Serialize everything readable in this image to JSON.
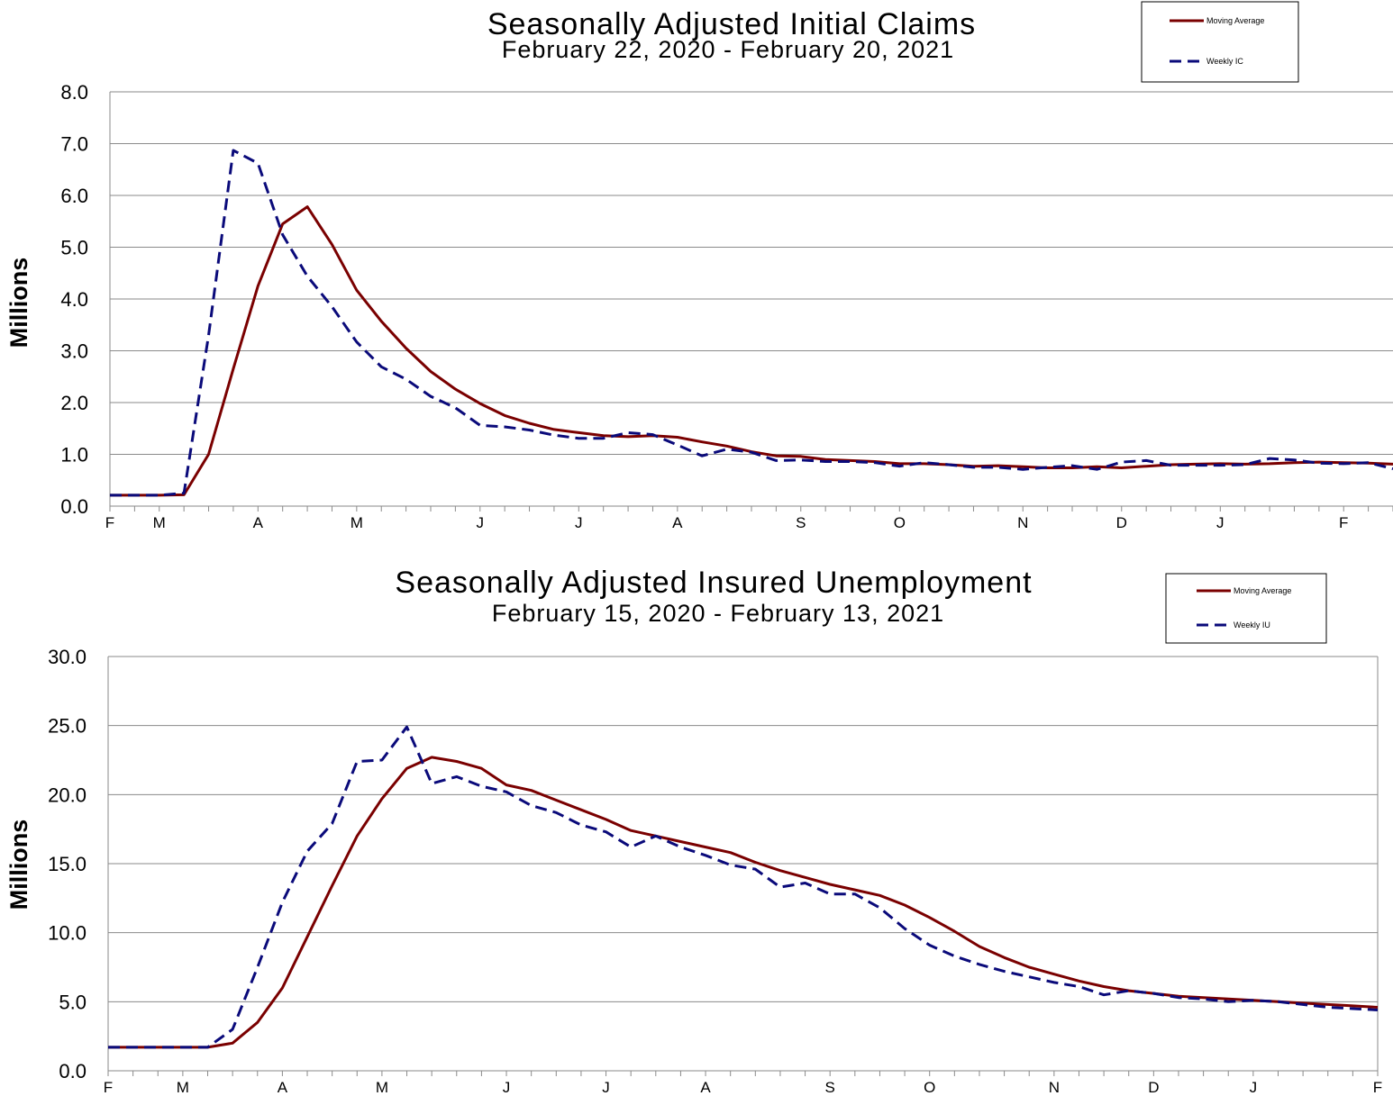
{
  "chart_data": [
    {
      "type": "line",
      "title": "Seasonally Adjusted Initial Claims",
      "subtitle": "February 22, 2020 - February 20, 2021",
      "ylabel": "Millions",
      "ylim": [
        0,
        8
      ],
      "yticks": [
        "0.0",
        "1.0",
        "2.0",
        "3.0",
        "4.0",
        "5.0",
        "6.0",
        "7.0",
        "8.0"
      ],
      "x_labels": [
        {
          "label": "F",
          "week": 0
        },
        {
          "label": "M",
          "week": 2
        },
        {
          "label": "A",
          "week": 6
        },
        {
          "label": "M",
          "week": 10
        },
        {
          "label": "J",
          "week": 15
        },
        {
          "label": "J",
          "week": 19
        },
        {
          "label": "A",
          "week": 23
        },
        {
          "label": "S",
          "week": 28
        },
        {
          "label": "O",
          "week": 32
        },
        {
          "label": "N",
          "week": 37
        },
        {
          "label": "D",
          "week": 41
        },
        {
          "label": "J",
          "week": 45
        },
        {
          "label": "F",
          "week": 50
        }
      ],
      "grid": true,
      "legend_position": "top-right",
      "series": [
        {
          "name": "Moving Average",
          "color": "#7a0000",
          "style": "solid",
          "values": [
            0.21,
            0.21,
            0.21,
            0.22,
            1.0,
            2.65,
            4.25,
            5.45,
            5.78,
            5.05,
            4.17,
            3.57,
            3.05,
            2.6,
            2.26,
            1.98,
            1.75,
            1.6,
            1.48,
            1.42,
            1.36,
            1.34,
            1.36,
            1.33,
            1.24,
            1.16,
            1.05,
            0.97,
            0.96,
            0.9,
            0.88,
            0.86,
            0.82,
            0.82,
            0.8,
            0.77,
            0.78,
            0.76,
            0.74,
            0.74,
            0.76,
            0.74,
            0.77,
            0.8,
            0.81,
            0.82,
            0.81,
            0.82,
            0.84,
            0.85,
            0.84,
            0.83,
            0.81
          ]
        },
        {
          "name": "Weekly IC",
          "color": "#0a0a7a",
          "style": "dashed",
          "values": [
            0.21,
            0.21,
            0.21,
            0.25,
            3.3,
            6.87,
            6.62,
            5.24,
            4.44,
            3.85,
            3.17,
            2.69,
            2.45,
            2.12,
            1.9,
            1.56,
            1.53,
            1.47,
            1.37,
            1.31,
            1.31,
            1.42,
            1.38,
            1.18,
            0.97,
            1.1,
            1.04,
            0.88,
            0.89,
            0.86,
            0.86,
            0.84,
            0.77,
            0.84,
            0.8,
            0.75,
            0.75,
            0.71,
            0.75,
            0.78,
            0.71,
            0.85,
            0.88,
            0.79,
            0.79,
            0.79,
            0.8,
            0.92,
            0.89,
            0.83,
            0.82,
            0.84,
            0.72
          ]
        }
      ]
    },
    {
      "type": "line",
      "title": "Seasonally Adjusted Insured Unemployment",
      "subtitle": "February 15, 2020 - February 13, 2021",
      "ylabel": "Millions",
      "ylim": [
        0,
        30
      ],
      "yticks": [
        "0.0",
        "5.0",
        "10.0",
        "15.0",
        "20.0",
        "25.0",
        "30.0"
      ],
      "x_labels": [
        {
          "label": "F",
          "week": 0
        },
        {
          "label": "M",
          "week": 3
        },
        {
          "label": "A",
          "week": 7
        },
        {
          "label": "M",
          "week": 11
        },
        {
          "label": "J",
          "week": 16
        },
        {
          "label": "J",
          "week": 20
        },
        {
          "label": "A",
          "week": 24
        },
        {
          "label": "S",
          "week": 29
        },
        {
          "label": "O",
          "week": 33
        },
        {
          "label": "N",
          "week": 38
        },
        {
          "label": "D",
          "week": 42
        },
        {
          "label": "J",
          "week": 46
        },
        {
          "label": "F",
          "week": 51
        }
      ],
      "grid": true,
      "legend_position": "top-right",
      "series": [
        {
          "name": "Moving Average",
          "color": "#7a0000",
          "style": "solid",
          "values": [
            1.7,
            1.7,
            1.7,
            1.7,
            1.7,
            2.0,
            3.5,
            6.0,
            9.7,
            13.4,
            17.0,
            19.7,
            21.9,
            22.7,
            22.4,
            21.9,
            20.7,
            20.3,
            19.6,
            18.9,
            18.2,
            17.4,
            17.0,
            16.6,
            16.2,
            15.8,
            15.1,
            14.5,
            14.0,
            13.5,
            13.1,
            12.7,
            12.0,
            11.1,
            10.1,
            9.0,
            8.2,
            7.5,
            7.0,
            6.5,
            6.1,
            5.8,
            5.6,
            5.4,
            5.3,
            5.2,
            5.1,
            5.0,
            4.9,
            4.8,
            4.7,
            4.6
          ]
        },
        {
          "name": "Weekly IU",
          "color": "#0a0a7a",
          "style": "dashed",
          "values": [
            1.7,
            1.7,
            1.7,
            1.7,
            1.7,
            3.0,
            7.5,
            12.2,
            15.9,
            17.9,
            22.4,
            22.5,
            24.9,
            20.8,
            21.3,
            20.6,
            20.2,
            19.2,
            18.7,
            17.8,
            17.3,
            16.2,
            17.0,
            16.2,
            15.6,
            14.9,
            14.6,
            13.3,
            13.6,
            12.8,
            12.8,
            11.8,
            10.3,
            9.1,
            8.3,
            7.7,
            7.2,
            6.8,
            6.4,
            6.1,
            5.5,
            5.8,
            5.6,
            5.3,
            5.2,
            5.0,
            5.1,
            5.0,
            4.8,
            4.6,
            4.5,
            4.4
          ]
        }
      ]
    }
  ]
}
